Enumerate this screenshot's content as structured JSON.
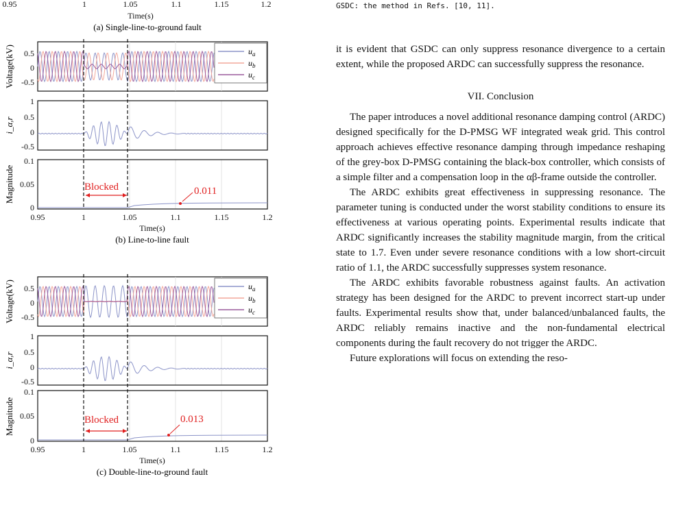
{
  "left_column": {
    "top_fragment": {
      "ticks": [
        "0.95",
        "1",
        "1.05",
        "1.1",
        "1.15",
        "1.2"
      ],
      "xlabel": "Time(s)",
      "caption": "(a) Single-line-to-ground fault"
    },
    "figures": [
      {
        "caption": "(b) Line-to-line fault",
        "xlabel": "Time(s)",
        "voltage_ylabel": "Voltage(kV)",
        "voltage_ticks": [
          "0.5",
          "0",
          "-0.5"
        ],
        "legend": [
          "u_a",
          "u_b",
          "u_c"
        ],
        "current_ylabel": "i_α,r",
        "current_ticks": [
          "1",
          "0.5",
          "0",
          "-0.5"
        ],
        "mag_ylabel": "Magnitude",
        "mag_ticks": [
          "0.1",
          "0.05",
          "0"
        ],
        "x_ticks": [
          "0.95",
          "1",
          "1.05",
          "1.1",
          "1.15",
          "1.2"
        ],
        "blocked_label": "Blocked",
        "annotation": "0.011"
      },
      {
        "caption": "(c) Double-line-to-ground fault",
        "xlabel": "Time(s)",
        "voltage_ylabel": "Voltage(kV)",
        "voltage_ticks": [
          "0.5",
          "0",
          "-0.5"
        ],
        "legend": [
          "u_a",
          "u_b",
          "u_c"
        ],
        "current_ylabel": "i_α,r",
        "current_ticks": [
          "1",
          "0.5",
          "0",
          "-0.5"
        ],
        "mag_ylabel": "Magnitude",
        "mag_ticks": [
          "0.1",
          "0.05",
          "0"
        ],
        "x_ticks": [
          "0.95",
          "1",
          "1.05",
          "1.1",
          "1.15",
          "1.2"
        ],
        "blocked_label": "Blocked",
        "annotation": "0.013"
      }
    ]
  },
  "right_column": {
    "note": "GSDC: the method in Refs. [10, 11].",
    "para0": "it is evident that GSDC can only suppress resonance divergence to a certain extent, while the proposed ARDC can successfully suppress the resonance.",
    "section_title": "VII. Conclusion",
    "para1": "The paper introduces a novel additional resonance damping control (ARDC) designed specifically for the D-PMSG WF integrated weak grid. This control approach achieves effective resonance damping through impedance reshaping of the grey-box D-PMSG containing the black-box controller, which consists of a simple filter and a compensation loop in the αβ-frame outside the controller.",
    "para2": "The ARDC exhibits great effectiveness in suppressing resonance. The parameter tuning is conducted under the worst stability conditions to ensure its effectiveness at various operating points. Experimental results indicate that ARDC significantly increases the stability magnitude margin, from the critical state to 1.7. Even under severe resonance conditions with a low short-circuit ratio of 1.1, the ARDC successfully suppresses system resonance.",
    "para3": "The ARDC exhibits favorable robustness against faults. An activation strategy has been designed for the ARDC to prevent incorrect start-up under faults. Experimental results show that, under balanced/unbalanced faults, the ARDC reliably remains inactive and the non-fundamental electrical components during the fault recovery do not trigger the ARDC.",
    "para4": "Future explorations will focus on extending the reso-"
  },
  "colors": {
    "ua": "#8b93c8",
    "ub": "#f2a79a",
    "uc": "#9a5a9c",
    "current": "#8b93c8",
    "annot": "#e01e1e"
  }
}
